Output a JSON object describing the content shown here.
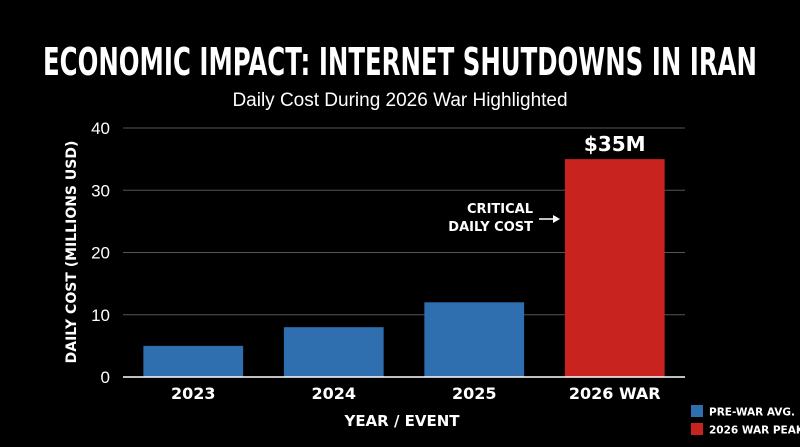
{
  "chart_data": {
    "type": "bar",
    "title": "ECONOMIC IMPACT: INTERNET SHUTDOWNS IN IRAN",
    "subtitle": "Daily Cost During 2026 War Highlighted",
    "xlabel": "YEAR / EVENT",
    "ylabel": "DAILY COST (MILLIONS USD)",
    "ylim": [
      0,
      40
    ],
    "yticks": [
      0,
      10,
      20,
      30,
      40
    ],
    "categories": [
      "2023",
      "2024",
      "2025",
      "2026 WAR"
    ],
    "values": [
      5,
      8,
      12,
      35
    ],
    "bar_groups": [
      "pre",
      "pre",
      "pre",
      "war"
    ],
    "data_labels": [
      "",
      "",
      "",
      "$35M"
    ],
    "grid": true,
    "annotation": {
      "lines": [
        "CRITICAL",
        "DAILY COST"
      ],
      "target": "2026 WAR"
    },
    "legend": {
      "placement": "bottom-right",
      "entries": [
        {
          "key": "pre",
          "label": "PRE-WAR AVG.",
          "color": "#2f6fb0"
        },
        {
          "key": "war",
          "label": "2026 WAR PEAK",
          "color": "#c8231f"
        }
      ]
    }
  }
}
